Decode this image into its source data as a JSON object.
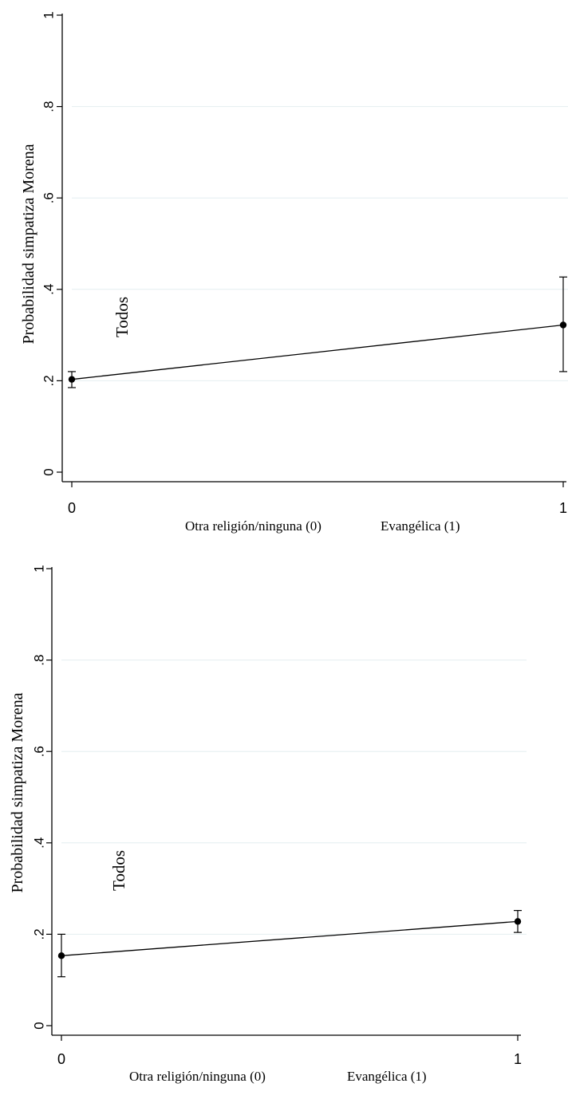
{
  "chart_data": [
    {
      "type": "line",
      "title": "",
      "ylabel": "Probabilidad simpatiza Morena",
      "xlabel_left": "Otra religión/ninguna (0)",
      "xlabel_right": "Evangélica (1)",
      "annotation": "Todos",
      "ylim": [
        0,
        1
      ],
      "yticks": [
        0,
        0.2,
        0.4,
        0.6,
        0.8,
        1
      ],
      "ytick_labels": [
        "0",
        ".2",
        ".4",
        ".6",
        ".8",
        "1"
      ],
      "xticks": [
        0,
        1
      ],
      "xtick_labels": [
        "0",
        "1"
      ],
      "grid": true,
      "x": [
        0,
        1
      ],
      "values": [
        0.203,
        0.322
      ],
      "ci_low": [
        0.185,
        0.22
      ],
      "ci_high": [
        0.22,
        0.427
      ]
    },
    {
      "type": "line",
      "title": "",
      "ylabel": "Probabilidad simpatiza Morena",
      "xlabel_left": "Otra religión/ninguna (0)",
      "xlabel_right": "Evangélica (1)",
      "annotation": "Todos",
      "ylim": [
        0,
        1
      ],
      "yticks": [
        0,
        0.2,
        0.4,
        0.6,
        0.8,
        1
      ],
      "ytick_labels": [
        "0",
        ".2",
        ".4",
        ".6",
        ".8",
        "1"
      ],
      "xticks": [
        0,
        1
      ],
      "xtick_labels": [
        "0",
        "1"
      ],
      "grid": true,
      "x": [
        0,
        1
      ],
      "values": [
        0.153,
        0.228
      ],
      "ci_low": [
        0.107,
        0.204
      ],
      "ci_high": [
        0.2,
        0.252
      ]
    }
  ]
}
